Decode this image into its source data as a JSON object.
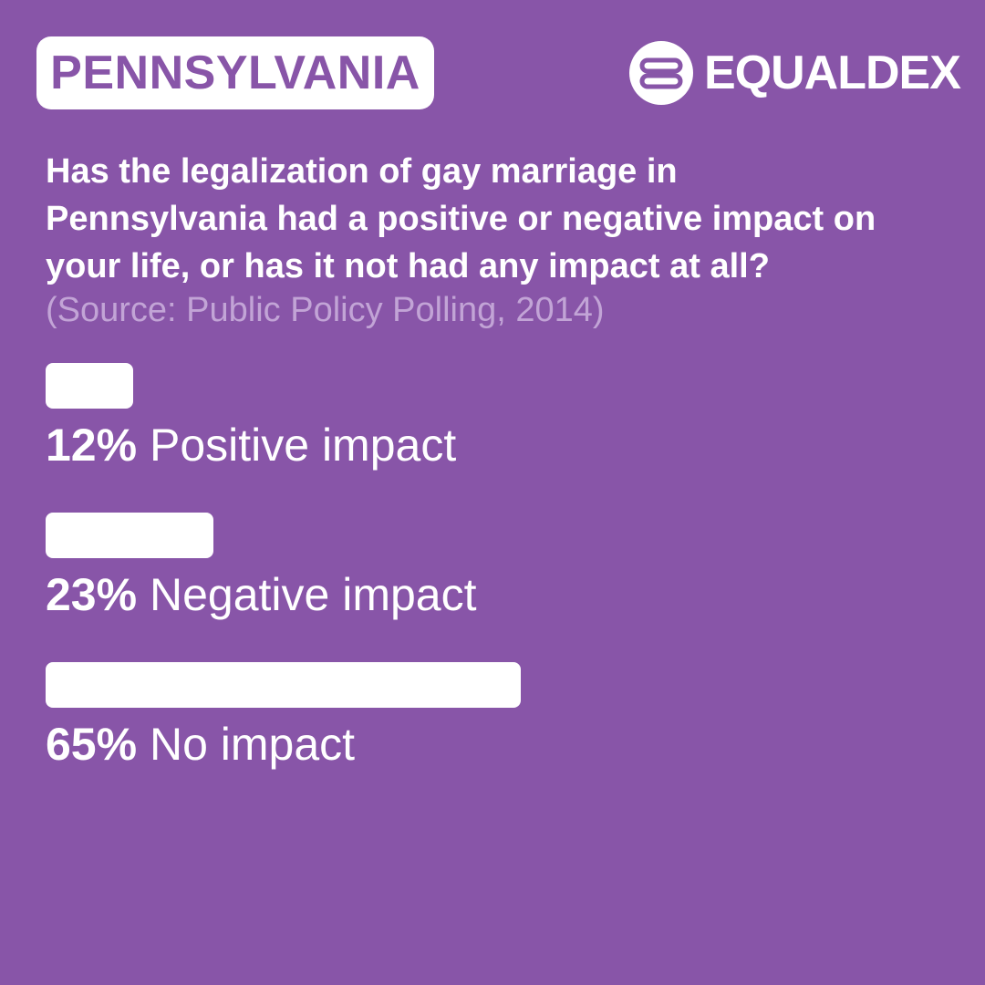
{
  "header": {
    "region": "PENNSYLVANIA",
    "brand": "EQUALDEX",
    "brand_icon": "equals-circle-icon"
  },
  "question": {
    "lines": [
      "Has the legalization of gay marriage in",
      "Pennsylvania had a positive or negative impact on",
      "your life, or has it not had any impact at all?"
    ],
    "source": "(Source: Public Policy Polling, 2014)"
  },
  "colors": {
    "background": "#8855A8",
    "bar": "#ffffff",
    "source_text": "#C2A4D6"
  },
  "chart_data": {
    "type": "bar",
    "orientation": "horizontal",
    "categories": [
      "Positive impact",
      "Negative impact",
      "No impact"
    ],
    "values": [
      12,
      23,
      65
    ],
    "value_labels": [
      "12%",
      "23%",
      "65%"
    ],
    "unit": "%",
    "xlim": [
      0,
      100
    ]
  }
}
